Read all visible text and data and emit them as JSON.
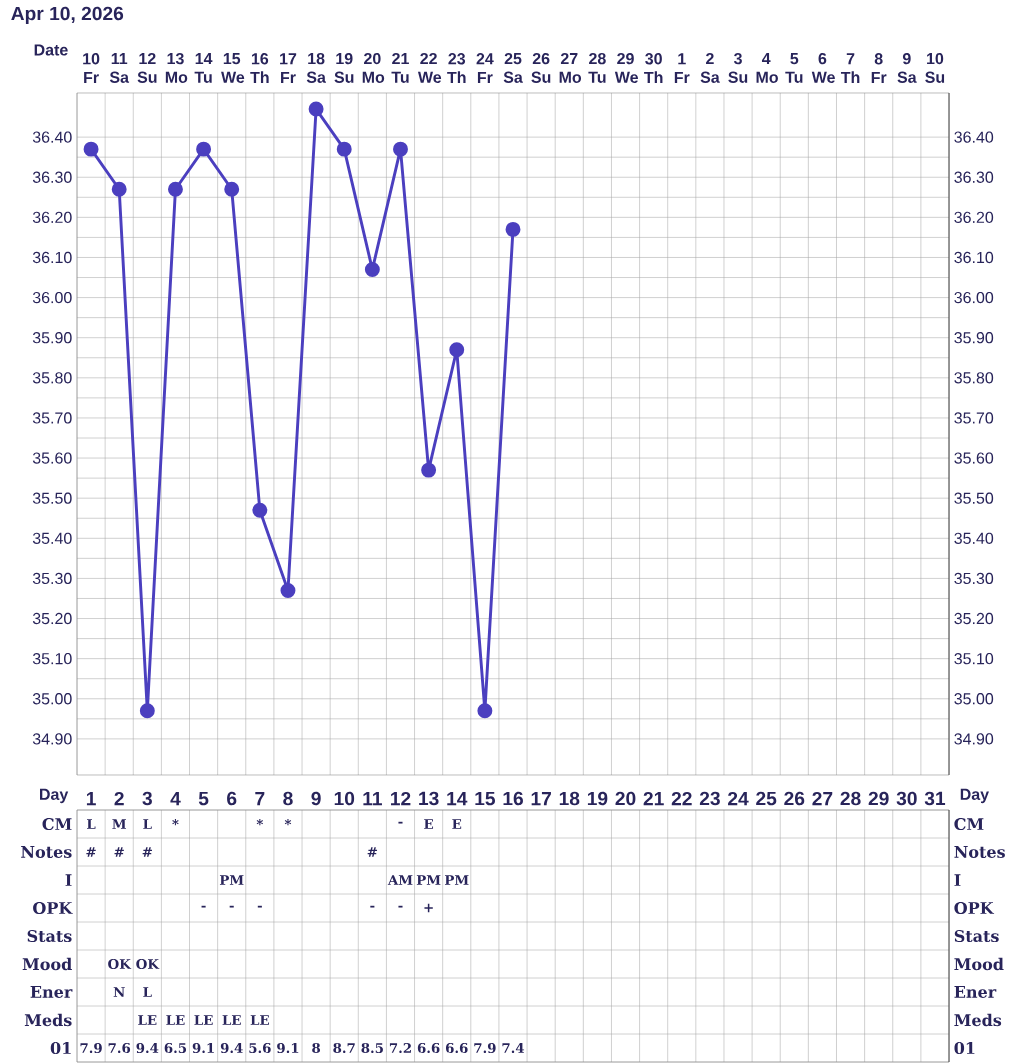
{
  "chart_data": [
    {
      "type": "line",
      "title": "Apr 10, 2026",
      "xlabel": "Date",
      "categories": [
        "10 Fr",
        "11 Sa",
        "12 Su",
        "13 Mo",
        "14 Tu",
        "15 We",
        "16 Th",
        "17 Fr",
        "18 Sa",
        "19 Su",
        "20 Mo",
        "21 Tu",
        "22 We",
        "23 Th",
        "24 Fr",
        "25 Sa",
        "26 Su",
        "27 Mo",
        "28 Tu",
        "29 We",
        "30 Th",
        "1 Fr",
        "2 Sa",
        "3 Su",
        "4 Mo",
        "5 Tu",
        "6 We",
        "7 Th",
        "8 Fr",
        "9 Sa",
        "10 Su"
      ],
      "values": [
        36.37,
        36.27,
        34.97,
        36.27,
        36.37,
        36.27,
        35.47,
        35.27,
        36.47,
        36.37,
        36.07,
        36.37,
        35.57,
        35.87,
        34.97,
        36.17,
        null,
        null,
        null,
        null,
        null,
        null,
        null,
        null,
        null,
        null,
        null,
        null,
        null,
        null,
        null
      ],
      "color": "#4b3fbf",
      "marker": "circle",
      "grid": true,
      "ylim": [
        34.81,
        36.51
      ],
      "yticks": [
        {
          "value": 34.9,
          "label": "34.90"
        },
        {
          "value": 35.0,
          "label": "35.00"
        },
        {
          "value": 35.1,
          "label": "35.10"
        },
        {
          "value": 35.2,
          "label": "35.20"
        },
        {
          "value": 35.3,
          "label": "35.30"
        },
        {
          "value": 35.4,
          "label": "35.40"
        },
        {
          "value": 35.5,
          "label": "35.50"
        },
        {
          "value": 35.6,
          "label": "35.60"
        },
        {
          "value": 35.7,
          "label": "35.70"
        },
        {
          "value": 35.8,
          "label": "35.80"
        },
        {
          "value": 35.9,
          "label": "35.90"
        },
        {
          "value": 36.0,
          "label": "36.00"
        },
        {
          "value": 36.1,
          "label": "36.10"
        },
        {
          "value": 36.2,
          "label": "36.20"
        },
        {
          "value": 36.3,
          "label": "36.30"
        },
        {
          "value": 36.4,
          "label": "36.40"
        }
      ],
      "y2lim": [
        34.81,
        36.51
      ],
      "y2ticks": [
        {
          "value": 34.9,
          "label": "34.90"
        },
        {
          "value": 35.0,
          "label": "35.00"
        },
        {
          "value": 35.1,
          "label": "35.10"
        },
        {
          "value": 35.2,
          "label": "35.20"
        },
        {
          "value": 35.3,
          "label": "35.30"
        },
        {
          "value": 35.4,
          "label": "35.40"
        },
        {
          "value": 35.5,
          "label": "35.50"
        },
        {
          "value": 35.6,
          "label": "35.60"
        },
        {
          "value": 35.7,
          "label": "35.70"
        },
        {
          "value": 35.8,
          "label": "35.80"
        },
        {
          "value": 35.9,
          "label": "35.90"
        },
        {
          "value": 36.0,
          "label": "36.00"
        },
        {
          "value": 36.1,
          "label": "36.10"
        },
        {
          "value": 36.2,
          "label": "36.20"
        },
        {
          "value": 36.3,
          "label": "36.30"
        },
        {
          "value": 36.4,
          "label": "36.40"
        }
      ]
    },
    {
      "type": "heatmap",
      "xlabel": "Day",
      "categories": [
        "1",
        "2",
        "3",
        "4",
        "5",
        "6",
        "7",
        "8",
        "9",
        "10",
        "11",
        "12",
        "13",
        "14",
        "15",
        "16",
        "17",
        "18",
        "19",
        "20",
        "21",
        "22",
        "23",
        "24",
        "25",
        "26",
        "27",
        "28",
        "29",
        "30",
        "31"
      ],
      "y_categories": [
        "CM",
        "Notes",
        "I",
        "OPK",
        "Stats",
        "Mood",
        "Ener",
        "Meds",
        "01"
      ],
      "y2_categories": [
        "CM",
        "Notes",
        "I",
        "OPK",
        "Stats",
        "Mood",
        "Ener",
        "Meds",
        "01"
      ],
      "cells": [
        [
          null,
          null,
          null,
          null,
          null,
          null,
          null,
          null,
          null,
          null,
          null,
          null,
          null,
          null,
          null,
          null,
          null,
          null,
          null,
          null,
          null,
          null,
          null,
          null,
          null,
          null,
          null,
          null,
          null,
          null,
          null
        ],
        [
          null,
          null,
          null,
          null,
          null,
          null,
          null,
          null,
          null,
          null,
          null,
          null,
          null,
          null,
          null,
          null,
          null,
          null,
          null,
          null,
          null,
          null,
          null,
          null,
          null,
          null,
          null,
          null,
          null,
          null,
          null
        ],
        [
          null,
          null,
          null,
          null,
          null,
          null,
          null,
          null,
          null,
          null,
          null,
          null,
          null,
          null,
          null,
          null,
          null,
          null,
          null,
          null,
          null,
          null,
          null,
          null,
          null,
          null,
          null,
          null,
          null,
          null,
          null
        ],
        [
          null,
          null,
          null,
          null,
          null,
          null,
          null,
          null,
          null,
          null,
          null,
          null,
          null,
          null,
          null,
          null,
          null,
          null,
          null,
          null,
          null,
          null,
          null,
          null,
          null,
          null,
          null,
          null,
          null,
          null,
          null
        ],
        [
          null,
          null,
          null,
          null,
          null,
          null,
          null,
          null,
          null,
          null,
          null,
          null,
          null,
          null,
          null,
          null,
          null,
          null,
          null,
          null,
          null,
          null,
          null,
          null,
          null,
          null,
          null,
          null,
          null,
          null,
          null
        ],
        [
          null,
          null,
          null,
          null,
          null,
          null,
          null,
          null,
          null,
          null,
          null,
          null,
          null,
          null,
          null,
          null,
          null,
          null,
          null,
          null,
          null,
          null,
          null,
          null,
          null,
          null,
          null,
          null,
          null,
          null,
          null
        ],
        [
          null,
          null,
          null,
          null,
          null,
          null,
          null,
          null,
          null,
          null,
          null,
          null,
          null,
          null,
          null,
          null,
          null,
          null,
          null,
          null,
          null,
          null,
          null,
          null,
          null,
          null,
          null,
          null,
          null,
          null,
          null
        ],
        [
          null,
          null,
          null,
          null,
          null,
          null,
          null,
          null,
          null,
          null,
          null,
          null,
          null,
          null,
          null,
          null,
          null,
          null,
          null,
          null,
          null,
          null,
          null,
          null,
          null,
          null,
          null,
          null,
          null,
          null,
          null
        ],
        [
          null,
          null,
          null,
          null,
          null,
          null,
          null,
          null,
          null,
          null,
          null,
          null,
          null,
          null,
          null,
          null,
          null,
          null,
          null,
          null,
          null,
          null,
          null,
          null,
          null,
          null,
          null,
          null,
          null,
          null,
          null
        ]
      ],
      "cell_labels": [
        [
          "L",
          "M",
          "L",
          "*",
          null,
          null,
          "*",
          "*",
          null,
          null,
          null,
          "-",
          "E",
          "E",
          null,
          null,
          null,
          null,
          null,
          null,
          null,
          null,
          null,
          null,
          null,
          null,
          null,
          null,
          null,
          null,
          null
        ],
        [
          "#",
          "#",
          "#",
          null,
          null,
          null,
          null,
          null,
          null,
          null,
          "#",
          null,
          null,
          null,
          null,
          null,
          null,
          null,
          null,
          null,
          null,
          null,
          null,
          null,
          null,
          null,
          null,
          null,
          null,
          null,
          null
        ],
        [
          null,
          null,
          null,
          null,
          null,
          "PM",
          null,
          null,
          null,
          null,
          null,
          "AM",
          "PM",
          "PM",
          null,
          null,
          null,
          null,
          null,
          null,
          null,
          null,
          null,
          null,
          null,
          null,
          null,
          null,
          null,
          null,
          null
        ],
        [
          null,
          null,
          null,
          null,
          "-",
          "-",
          "-",
          null,
          null,
          null,
          "-",
          "-",
          "+",
          null,
          null,
          null,
          null,
          null,
          null,
          null,
          null,
          null,
          null,
          null,
          null,
          null,
          null,
          null,
          null,
          null,
          null
        ],
        [
          null,
          null,
          null,
          null,
          null,
          null,
          null,
          null,
          null,
          null,
          null,
          null,
          null,
          null,
          null,
          null,
          null,
          null,
          null,
          null,
          null,
          null,
          null,
          null,
          null,
          null,
          null,
          null,
          null,
          null,
          null
        ],
        [
          null,
          "OK",
          "OK",
          null,
          null,
          null,
          null,
          null,
          null,
          null,
          null,
          null,
          null,
          null,
          null,
          null,
          null,
          null,
          null,
          null,
          null,
          null,
          null,
          null,
          null,
          null,
          null,
          null,
          null,
          null,
          null
        ],
        [
          null,
          "N",
          "L",
          null,
          null,
          null,
          null,
          null,
          null,
          null,
          null,
          null,
          null,
          null,
          null,
          null,
          null,
          null,
          null,
          null,
          null,
          null,
          null,
          null,
          null,
          null,
          null,
          null,
          null,
          null,
          null
        ],
        [
          null,
          null,
          "LE",
          "LE",
          "LE",
          "LE",
          "LE",
          null,
          null,
          null,
          null,
          null,
          null,
          null,
          null,
          null,
          null,
          null,
          null,
          null,
          null,
          null,
          null,
          null,
          null,
          null,
          null,
          null,
          null,
          null,
          null
        ],
        [
          "7.9",
          "7.6",
          "9.4",
          "6.5",
          "9.1",
          "9.4",
          "5.6",
          "9.1",
          "8",
          "8.7",
          "8.5",
          "7.2",
          "6.6",
          "6.6",
          "7.9",
          "7.4",
          null,
          null,
          null,
          null,
          null,
          null,
          null,
          null,
          null,
          null,
          null,
          null,
          null,
          null,
          null
        ]
      ]
    }
  ]
}
